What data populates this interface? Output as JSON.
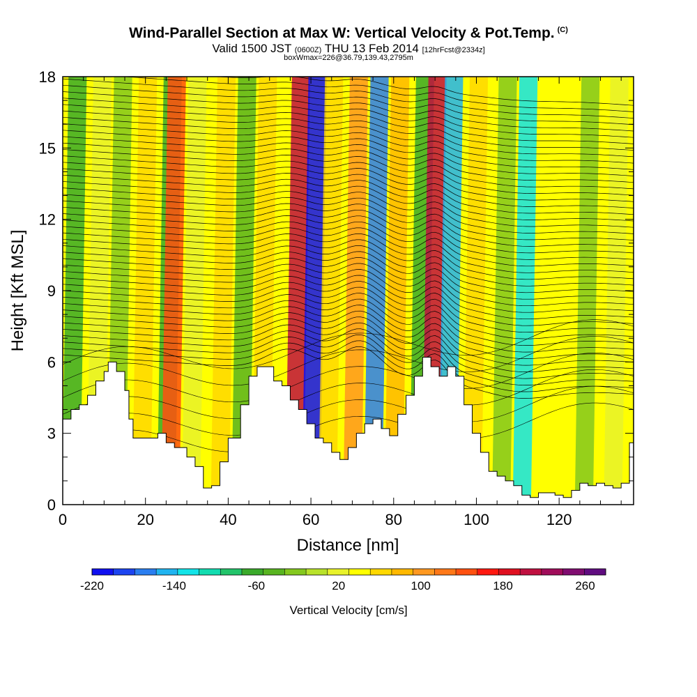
{
  "title": {
    "main": "Wind-Parallel Section at Max W: Vertical Velocity & Pot.Temp.",
    "copyright": "(C)",
    "valid_prefix": "Valid 1500 JST",
    "valid_utc": "(0600Z)",
    "valid_date": "THU 13 Feb 2014",
    "forecast": "[12hrFcst@2334z]",
    "box_info": "boxWmax=226@36.79,139.43,2795m"
  },
  "chart_data": {
    "type": "heatmap",
    "xlabel": "Distance [nm]",
    "ylabel": "Height [Kft MSL]",
    "xlim": [
      0,
      138
    ],
    "ylim": [
      0,
      18
    ],
    "x_ticks": [
      0,
      20,
      40,
      60,
      80,
      100,
      120
    ],
    "y_ticks": [
      0,
      3,
      6,
      9,
      12,
      15,
      18
    ],
    "colorbar": {
      "label": "Vertical Velocity [cm/s]",
      "min": -220,
      "max": 280,
      "tick_labels": [
        -220,
        -140,
        -60,
        20,
        100,
        180,
        260
      ],
      "colors": [
        "#1010f0",
        "#1c44f0",
        "#2a7ef0",
        "#20b4f0",
        "#12e4e8",
        "#12dcb0",
        "#22c46a",
        "#3aaa2a",
        "#58b420",
        "#84c81e",
        "#b8e22a",
        "#e8f22a",
        "#ffff00",
        "#ffd800",
        "#ffb800",
        "#ff9820",
        "#ff7818",
        "#ff5010",
        "#ff1810",
        "#e01020",
        "#c01040",
        "#a00c5a",
        "#800c70",
        "#600c80"
      ]
    },
    "terrain_nm_kft": [
      [
        0,
        3.6
      ],
      [
        2,
        4.0
      ],
      [
        4,
        4.2
      ],
      [
        6,
        4.6
      ],
      [
        8,
        5.2
      ],
      [
        10,
        5.6
      ],
      [
        11,
        6.0
      ],
      [
        13,
        5.6
      ],
      [
        15,
        4.8
      ],
      [
        16,
        3.6
      ],
      [
        17,
        2.8
      ],
      [
        20,
        2.8
      ],
      [
        23,
        3.0
      ],
      [
        25,
        2.6
      ],
      [
        27,
        2.4
      ],
      [
        30,
        2.0
      ],
      [
        32,
        1.6
      ],
      [
        34,
        0.7
      ],
      [
        36,
        0.8
      ],
      [
        38,
        1.8
      ],
      [
        40,
        2.8
      ],
      [
        43,
        4.2
      ],
      [
        45,
        5.4
      ],
      [
        47,
        5.8
      ],
      [
        49,
        5.8
      ],
      [
        51,
        5.2
      ],
      [
        53,
        5.0
      ],
      [
        55,
        4.4
      ],
      [
        57,
        4.0
      ],
      [
        59,
        3.4
      ],
      [
        61,
        2.8
      ],
      [
        63,
        2.6
      ],
      [
        65,
        2.2
      ],
      [
        67,
        1.9
      ],
      [
        69,
        2.4
      ],
      [
        71,
        3.0
      ],
      [
        73,
        3.4
      ],
      [
        75,
        3.6
      ],
      [
        77,
        3.2
      ],
      [
        79,
        2.9
      ],
      [
        81,
        3.8
      ],
      [
        83,
        4.6
      ],
      [
        85,
        5.4
      ],
      [
        87,
        6.2
      ],
      [
        89,
        5.8
      ],
      [
        91,
        5.4
      ],
      [
        93,
        5.8
      ],
      [
        95,
        5.4
      ],
      [
        97,
        4.2
      ],
      [
        99,
        3.0
      ],
      [
        101,
        2.2
      ],
      [
        103,
        1.4
      ],
      [
        105,
        1.2
      ],
      [
        107,
        1.0
      ],
      [
        109,
        0.8
      ],
      [
        111,
        0.4
      ],
      [
        113,
        0.3
      ],
      [
        115,
        0.5
      ],
      [
        117,
        0.5
      ],
      [
        119,
        0.4
      ],
      [
        121,
        0.3
      ],
      [
        123,
        0.6
      ],
      [
        125,
        0.9
      ],
      [
        127,
        0.8
      ],
      [
        129,
        0.9
      ],
      [
        131,
        0.8
      ],
      [
        133,
        0.7
      ],
      [
        135,
        0.9
      ],
      [
        137,
        2.6
      ],
      [
        138,
        2.8
      ]
    ],
    "velocity_bands": [
      {
        "x_base": 2,
        "w": -60
      },
      {
        "x_base": 8,
        "w": 20
      },
      {
        "x_base": 13,
        "w": -20
      },
      {
        "x_base": 19,
        "w": 60
      },
      {
        "x_base": 25,
        "w": -60
      },
      {
        "x_base": 26,
        "w": 140
      },
      {
        "x_base": 31,
        "w": 20
      },
      {
        "x_base": 38,
        "w": 60
      },
      {
        "x_base": 43,
        "w": -40
      },
      {
        "x_base": 48,
        "w": 60
      },
      {
        "x_base": 56,
        "w": 200
      },
      {
        "x_base": 60,
        "w": -200
      },
      {
        "x_base": 64,
        "w": 60
      },
      {
        "x_base": 70,
        "w": 100
      },
      {
        "x_base": 75,
        "w": -160
      },
      {
        "x_base": 80,
        "w": 80
      },
      {
        "x_base": 86,
        "w": -60
      },
      {
        "x_base": 89,
        "w": 200
      },
      {
        "x_base": 93,
        "w": -140
      },
      {
        "x_base": 99,
        "w": 60
      },
      {
        "x_base": 106,
        "w": -20
      },
      {
        "x_base": 111,
        "w": -120
      },
      {
        "x_base": 118,
        "w": 40
      },
      {
        "x_base": 126,
        "w": -20
      },
      {
        "x_base": 133,
        "w": 20
      }
    ]
  }
}
